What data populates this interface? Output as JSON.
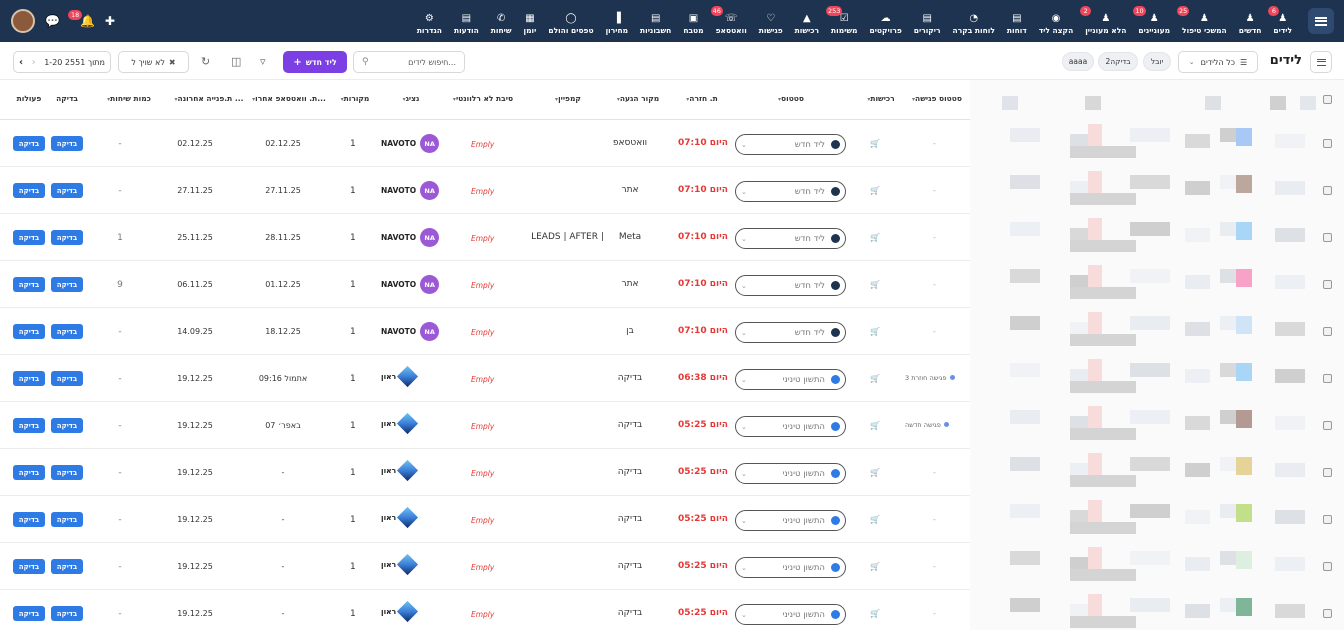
{
  "nav": {
    "items": [
      {
        "label": "לידים",
        "icon": "person-icon",
        "badge": "6"
      },
      {
        "label": "חדשים",
        "icon": "person-icon",
        "badge": ""
      },
      {
        "label": "המשכי טיפול",
        "icon": "person-icon",
        "badge": "25"
      },
      {
        "label": "מעוניינים",
        "icon": "person-icon",
        "badge": "10"
      },
      {
        "label": "הלא מעוניין",
        "icon": "person-icon",
        "badge": "2"
      },
      {
        "label": "הקצה ליד",
        "icon": "hat-icon",
        "badge": ""
      },
      {
        "label": "דוחות",
        "icon": "bars-icon",
        "badge": ""
      },
      {
        "label": "לוחות בקרה",
        "icon": "gauge-icon",
        "badge": ""
      },
      {
        "label": "ריקורים",
        "icon": "doc-icon",
        "badge": ""
      },
      {
        "label": "פרויקטים",
        "icon": "cloud-icon",
        "badge": ""
      },
      {
        "label": "משימות",
        "icon": "check-icon",
        "badge": "253"
      },
      {
        "label": "רכישות",
        "icon": "chart-icon",
        "badge": ""
      },
      {
        "label": "פגישות",
        "icon": "handshake-icon",
        "badge": ""
      },
      {
        "label": "וואטסאפ",
        "icon": "whatsapp-icon",
        "badge": "46"
      },
      {
        "label": "מטבח",
        "icon": "box-icon",
        "badge": ""
      },
      {
        "label": "חשבוניות",
        "icon": "doc-icon",
        "badge": ""
      },
      {
        "label": "מחירון",
        "icon": "barcode-icon",
        "badge": ""
      },
      {
        "label": "טפסים והולם",
        "icon": "cup-icon",
        "badge": ""
      },
      {
        "label": "יומן",
        "icon": "calendar-icon",
        "badge": ""
      },
      {
        "label": "שיחות",
        "icon": "phone-icon",
        "badge": ""
      },
      {
        "label": "הודעות",
        "icon": "doc-icon",
        "badge": ""
      },
      {
        "label": "הגדרות",
        "icon": "gear-icon",
        "badge": ""
      }
    ],
    "notif_badge": "18"
  },
  "toolbar": {
    "title": "לידים",
    "all_leads": "כל הלידים",
    "pill1": "יובל",
    "pill2": "בדיקה2",
    "pill3": "aaaa",
    "new_lead": "ליד חדש",
    "search_placeholder": "חיפוש לידים...",
    "no_assign": "לא שויך ל",
    "pagination": "1-20 מתוך 2551"
  },
  "columns": [
    "סטטוס פגישה",
    "רכישות",
    "סטטוס",
    "ת. חזרה",
    "מקור הגעה",
    "קמפיין",
    "סיבת לא רלוונטי",
    "נציג",
    "מקורות",
    "ת. וואטסאפ אחרו...",
    "ת.פנייה אחרונה ...",
    "כמות שיחות",
    "בדיקה",
    "פעולות"
  ],
  "rows": [
    {
      "meeting": "-",
      "status": "ליד חדש",
      "status_color": "#1e3350",
      "ret": "היום 07:10",
      "source": "וואטסאפ",
      "campaign": "",
      "cause": "Emply",
      "agent": "NAVOTO",
      "agent_type": "na",
      "sources": "1",
      "wa": "02.12.25",
      "last": "02.12.25",
      "calls": "-"
    },
    {
      "meeting": "-",
      "status": "ליד חדש",
      "status_color": "#1e3350",
      "ret": "היום 07:10",
      "source": "אתר",
      "campaign": "",
      "cause": "Emply",
      "agent": "NAVOTO",
      "agent_type": "na",
      "sources": "1",
      "wa": "27.11.25",
      "last": "27.11.25",
      "calls": "-"
    },
    {
      "meeting": "-",
      "status": "ליד חדש",
      "status_color": "#1e3350",
      "ret": "היום 07:10",
      "source": "Meta",
      "campaign": "LEADS | AFTER |",
      "cause": "Emply",
      "agent": "NAVOTO",
      "agent_type": "na",
      "sources": "1",
      "wa": "28.11.25",
      "last": "25.11.25",
      "calls": "1"
    },
    {
      "meeting": "-",
      "status": "ליד חדש",
      "status_color": "#1e3350",
      "ret": "היום 07:10",
      "source": "אתר",
      "campaign": "",
      "cause": "Emply",
      "agent": "NAVOTO",
      "agent_type": "na",
      "sources": "1",
      "wa": "01.12.25",
      "last": "06.11.25",
      "calls": "9"
    },
    {
      "meeting": "-",
      "status": "ליד חדש",
      "status_color": "#1e3350",
      "ret": "היום 07:10",
      "source": "בן",
      "campaign": "",
      "cause": "Emply",
      "agent": "NAVOTO",
      "agent_type": "na",
      "sources": "1",
      "wa": "18.12.25",
      "last": "14.09.25",
      "calls": "-"
    },
    {
      "meeting": "פגישה חוזרת 3",
      "status": "התשון טיניני",
      "status_color": "#2f7be6",
      "ret": "היום 06:38",
      "source": "בדיקה",
      "campaign": "",
      "cause": "Emply",
      "agent": "ראון",
      "agent_type": "diamond",
      "sources": "1",
      "wa": "אתמול 09:16",
      "last": "19.12.25",
      "calls": "-"
    },
    {
      "meeting": "פגישה חדשה",
      "status": "התשון טיניני",
      "status_color": "#2f7be6",
      "ret": "היום 05:25",
      "source": "בדיקה",
      "campaign": "",
      "cause": "Emply",
      "agent": "ראון",
      "agent_type": "diamond",
      "sources": "1",
      "wa": "07 באפר׳",
      "last": "19.12.25",
      "calls": "-"
    },
    {
      "meeting": "-",
      "status": "התשון טיניני",
      "status_color": "#2f7be6",
      "ret": "היום 05:25",
      "source": "בדיקה",
      "campaign": "",
      "cause": "Emply",
      "agent": "ראון",
      "agent_type": "diamond",
      "sources": "1",
      "wa": "-",
      "last": "19.12.25",
      "calls": "-"
    },
    {
      "meeting": "-",
      "status": "התשון טיניני",
      "status_color": "#2f7be6",
      "ret": "היום 05:25",
      "source": "בדיקה",
      "campaign": "",
      "cause": "Emply",
      "agent": "ראון",
      "agent_type": "diamond",
      "sources": "1",
      "wa": "-",
      "last": "19.12.25",
      "calls": "-"
    },
    {
      "meeting": "-",
      "status": "התשון טיניני",
      "status_color": "#2f7be6",
      "ret": "היום 05:25",
      "source": "בדיקה",
      "campaign": "",
      "cause": "Emply",
      "agent": "ראון",
      "agent_type": "diamond",
      "sources": "1",
      "wa": "-",
      "last": "19.12.25",
      "calls": "-"
    },
    {
      "meeting": "-",
      "status": "התשון טיניני",
      "status_color": "#2f7be6",
      "ret": "היום 05:25",
      "source": "בדיקה",
      "campaign": "",
      "cause": "Emply",
      "agent": "ראון",
      "agent_type": "diamond",
      "sources": "1",
      "wa": "-",
      "last": "19.12.25",
      "calls": "-"
    }
  ],
  "check_label": "בדיקה"
}
